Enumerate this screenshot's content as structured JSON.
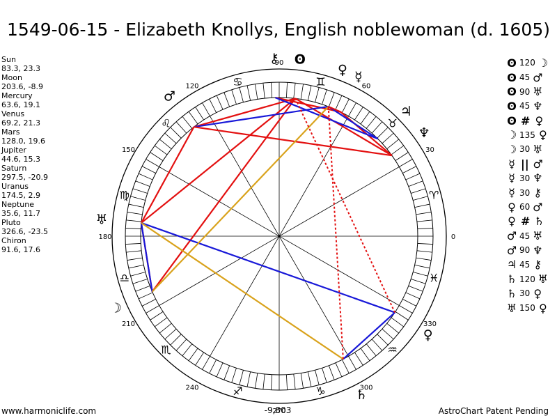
{
  "title": "1549-06-15 - Elizabeth Knollys, English noblewoman (d. 1605)",
  "planets": [
    {
      "name": "Sun",
      "pos": "83.3, 23.3",
      "glyph": "ʘ"
    },
    {
      "name": "Moon",
      "pos": "203.6, -8.9",
      "glyph": "☽"
    },
    {
      "name": "Mercury",
      "pos": "63.6, 19.1",
      "glyph": "☿"
    },
    {
      "name": "Venus",
      "pos": "69.2, 21.3",
      "glyph": "♀"
    },
    {
      "name": "Mars",
      "pos": "128.0, 19.6",
      "glyph": "♂"
    },
    {
      "name": "Jupiter",
      "pos": "44.6, 15.3",
      "glyph": "♃"
    },
    {
      "name": "Saturn",
      "pos": "297.5, -20.9",
      "glyph": "♄"
    },
    {
      "name": "Uranus",
      "pos": "174.5, 2.9",
      "glyph": "♅"
    },
    {
      "name": "Neptune",
      "pos": "35.6, 11.7",
      "glyph": "♆"
    },
    {
      "name": "Pluto",
      "pos": "326.6, -23.5",
      "glyph": "♀"
    },
    {
      "name": "Chiron",
      "pos": "91.6, 17.6",
      "glyph": "⚷"
    }
  ],
  "aspects": [
    {
      "p1": "ʘ",
      "angle": "120",
      "p2": "☽"
    },
    {
      "p1": "ʘ",
      "angle": "45",
      "p2": "♂"
    },
    {
      "p1": "ʘ",
      "angle": "90",
      "p2": "♅"
    },
    {
      "p1": "ʘ",
      "angle": "45",
      "p2": "♆"
    },
    {
      "p1": "ʘ",
      "angle": "",
      "sym": "#",
      "p2": "♀"
    },
    {
      "p1": "☽",
      "angle": "135",
      "p2": "♀"
    },
    {
      "p1": "☽",
      "angle": "30",
      "p2": "♅"
    },
    {
      "p1": "☿",
      "angle": "",
      "sym": "||",
      "p2": "♂"
    },
    {
      "p1": "☿",
      "angle": "30",
      "p2": "♆"
    },
    {
      "p1": "☿",
      "angle": "30",
      "p2": "⚷"
    },
    {
      "p1": "♀",
      "angle": "60",
      "p2": "♂"
    },
    {
      "p1": "♀",
      "angle": "",
      "sym": "#",
      "p2": "♄"
    },
    {
      "p1": "♂",
      "angle": "45",
      "p2": "♅"
    },
    {
      "p1": "♂",
      "angle": "90",
      "p2": "♆"
    },
    {
      "p1": "♃",
      "angle": "45",
      "p2": "⚷"
    },
    {
      "p1": "♄",
      "angle": "120",
      "p2": "♅"
    },
    {
      "p1": "♄",
      "angle": "30",
      "p2": "♀"
    },
    {
      "p1": "♅",
      "angle": "150",
      "p2": "♀"
    }
  ],
  "wheel": {
    "degree_labels": [
      "0",
      "30",
      "60",
      "90",
      "120",
      "150",
      "180",
      "210",
      "240",
      "270",
      "300",
      "330"
    ],
    "bottom_value": "-9,803",
    "zodiac": [
      "♈",
      "♉",
      "♊",
      "♋",
      "♌",
      "♍",
      "♎",
      "♏",
      "♐",
      "♑",
      "♒",
      "♓"
    ],
    "colors": {
      "red": "#e31010",
      "blue": "#1818d8",
      "gold": "#d9a21b",
      "ring": "#000000"
    }
  },
  "footer": {
    "left": "www.harmoniclife.com",
    "right": "AstroChart Patent Pending"
  }
}
